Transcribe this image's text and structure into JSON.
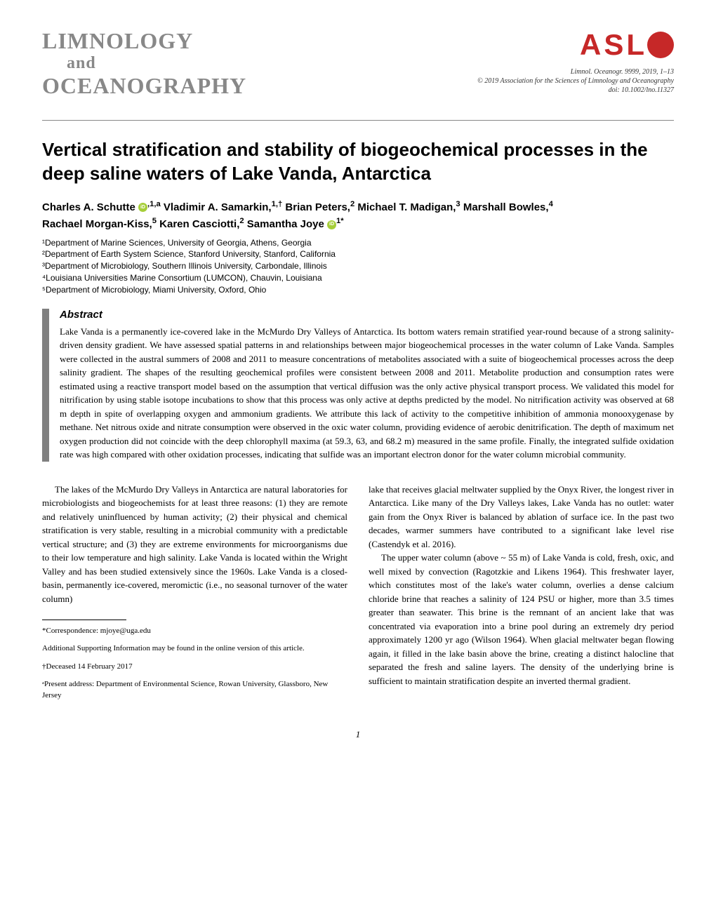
{
  "journal": {
    "line1": "LIMNOLOGY",
    "line2": "and",
    "line3": "OCEANOGRAPHY"
  },
  "publisher_logo": {
    "text": "ASL",
    "color": "#c62828"
  },
  "citation": {
    "line1": "Limnol. Oceanogr. 9999, 2019, 1–13",
    "line2": "© 2019 Association for the Sciences of Limnology and Oceanography",
    "line3": "doi: 10.1002/lno.11327"
  },
  "article": {
    "title": "Vertical stratification and stability of biogeochemical processes in the deep saline waters of Lake Vanda, Antarctica"
  },
  "authors": {
    "line1": "Charles A. Schutte ",
    "sup1": ",1,a",
    "line2": " Vladimir A. Samarkin,",
    "sup2": "1,†",
    "line3": " Brian Peters,",
    "sup3": "2",
    "line4": " Michael T. Madigan,",
    "sup4": "3",
    "line5": " Marshall Bowles,",
    "sup5": "4",
    "line6": "Rachael Morgan-Kiss,",
    "sup6": "5",
    "line7": " Karen Casciotti,",
    "sup7": "2",
    "line8": " Samantha Joye ",
    "sup8": "1*"
  },
  "affiliations": {
    "a1": "¹Department of Marine Sciences, University of Georgia, Athens, Georgia",
    "a2": "²Department of Earth System Science, Stanford University, Stanford, California",
    "a3": "³Department of Microbiology, Southern Illinois University, Carbondale, Illinois",
    "a4": "⁴Louisiana Universities Marine Consortium (LUMCON), Chauvin, Louisiana",
    "a5": "⁵Department of Microbiology, Miami University, Oxford, Ohio"
  },
  "abstract": {
    "heading": "Abstract",
    "text": "Lake Vanda is a permanently ice-covered lake in the McMurdo Dry Valleys of Antarctica. Its bottom waters remain stratified year-round because of a strong salinity-driven density gradient. We have assessed spatial patterns in and relationships between major biogeochemical processes in the water column of Lake Vanda. Samples were collected in the austral summers of 2008 and 2011 to measure concentrations of metabolites associated with a suite of biogeochemical processes across the deep salinity gradient. The shapes of the resulting geochemical profiles were consistent between 2008 and 2011. Metabolite production and consumption rates were estimated using a reactive transport model based on the assumption that vertical diffusion was the only active physical transport process. We validated this model for nitrification by using stable isotope incubations to show that this process was only active at depths predicted by the model. No nitrification activity was observed at 68 m depth in spite of overlapping oxygen and ammonium gradients. We attribute this lack of activity to the competitive inhibition of ammonia monooxygenase by methane. Net nitrous oxide and nitrate consumption were observed in the oxic water column, providing evidence of aerobic denitrification. The depth of maximum net oxygen production did not coincide with the deep chlorophyll maxima (at 59.3, 63, and 68.2 m) measured in the same profile. Finally, the integrated sulfide oxidation rate was high compared with other oxidation processes, indicating that sulfide was an important electron donor for the water column microbial community."
  },
  "body": {
    "col1_p1": "The lakes of the McMurdo Dry Valleys in Antarctica are natural laboratories for microbiologists and biogeochemists for at least three reasons: (1) they are remote and relatively uninfluenced by human activity; (2) their physical and chemical stratification is very stable, resulting in a microbial community with a predictable vertical structure; and (3) they are extreme environments for microorganisms due to their low temperature and high salinity. Lake Vanda is located within the Wright Valley and has been studied extensively since the 1960s. Lake Vanda is a closed-basin, permanently ice-covered, meromictic (i.e., no seasonal turnover of the water column)",
    "col2_p1": "lake that receives glacial meltwater supplied by the Onyx River, the longest river in Antarctica. Like many of the Dry Valleys lakes, Lake Vanda has no outlet: water gain from the Onyx River is balanced by ablation of surface ice. In the past two decades, warmer summers have contributed to a significant lake level rise (Castendyk et al. 2016).",
    "col2_p2": "The upper water column (above ~ 55 m) of Lake Vanda is cold, fresh, oxic, and well mixed by convection (Ragotzkie and Likens 1964). This freshwater layer, which constitutes most of the lake's water column, overlies a dense calcium chloride brine that reaches a salinity of 124 PSU or higher, more than 3.5 times greater than seawater. This brine is the remnant of an ancient lake that was concentrated via evaporation into a brine pool during an extremely dry period approximately 1200 yr ago (Wilson 1964). When glacial meltwater began flowing again, it filled in the lake basin above the brine, creating a distinct halocline that separated the fresh and saline layers. The density of the underlying brine is sufficient to maintain stratification despite an inverted thermal gradient."
  },
  "footnotes": {
    "correspondence": "*Correspondence: mjoye@uga.edu",
    "supporting": "Additional Supporting Information may be found in the online version of this article.",
    "deceased": "†Deceased 14 February 2017",
    "present_address": "ᵃPresent address: Department of Environmental Science, Rowan University, Glassboro, New Jersey"
  },
  "page_number": "1"
}
